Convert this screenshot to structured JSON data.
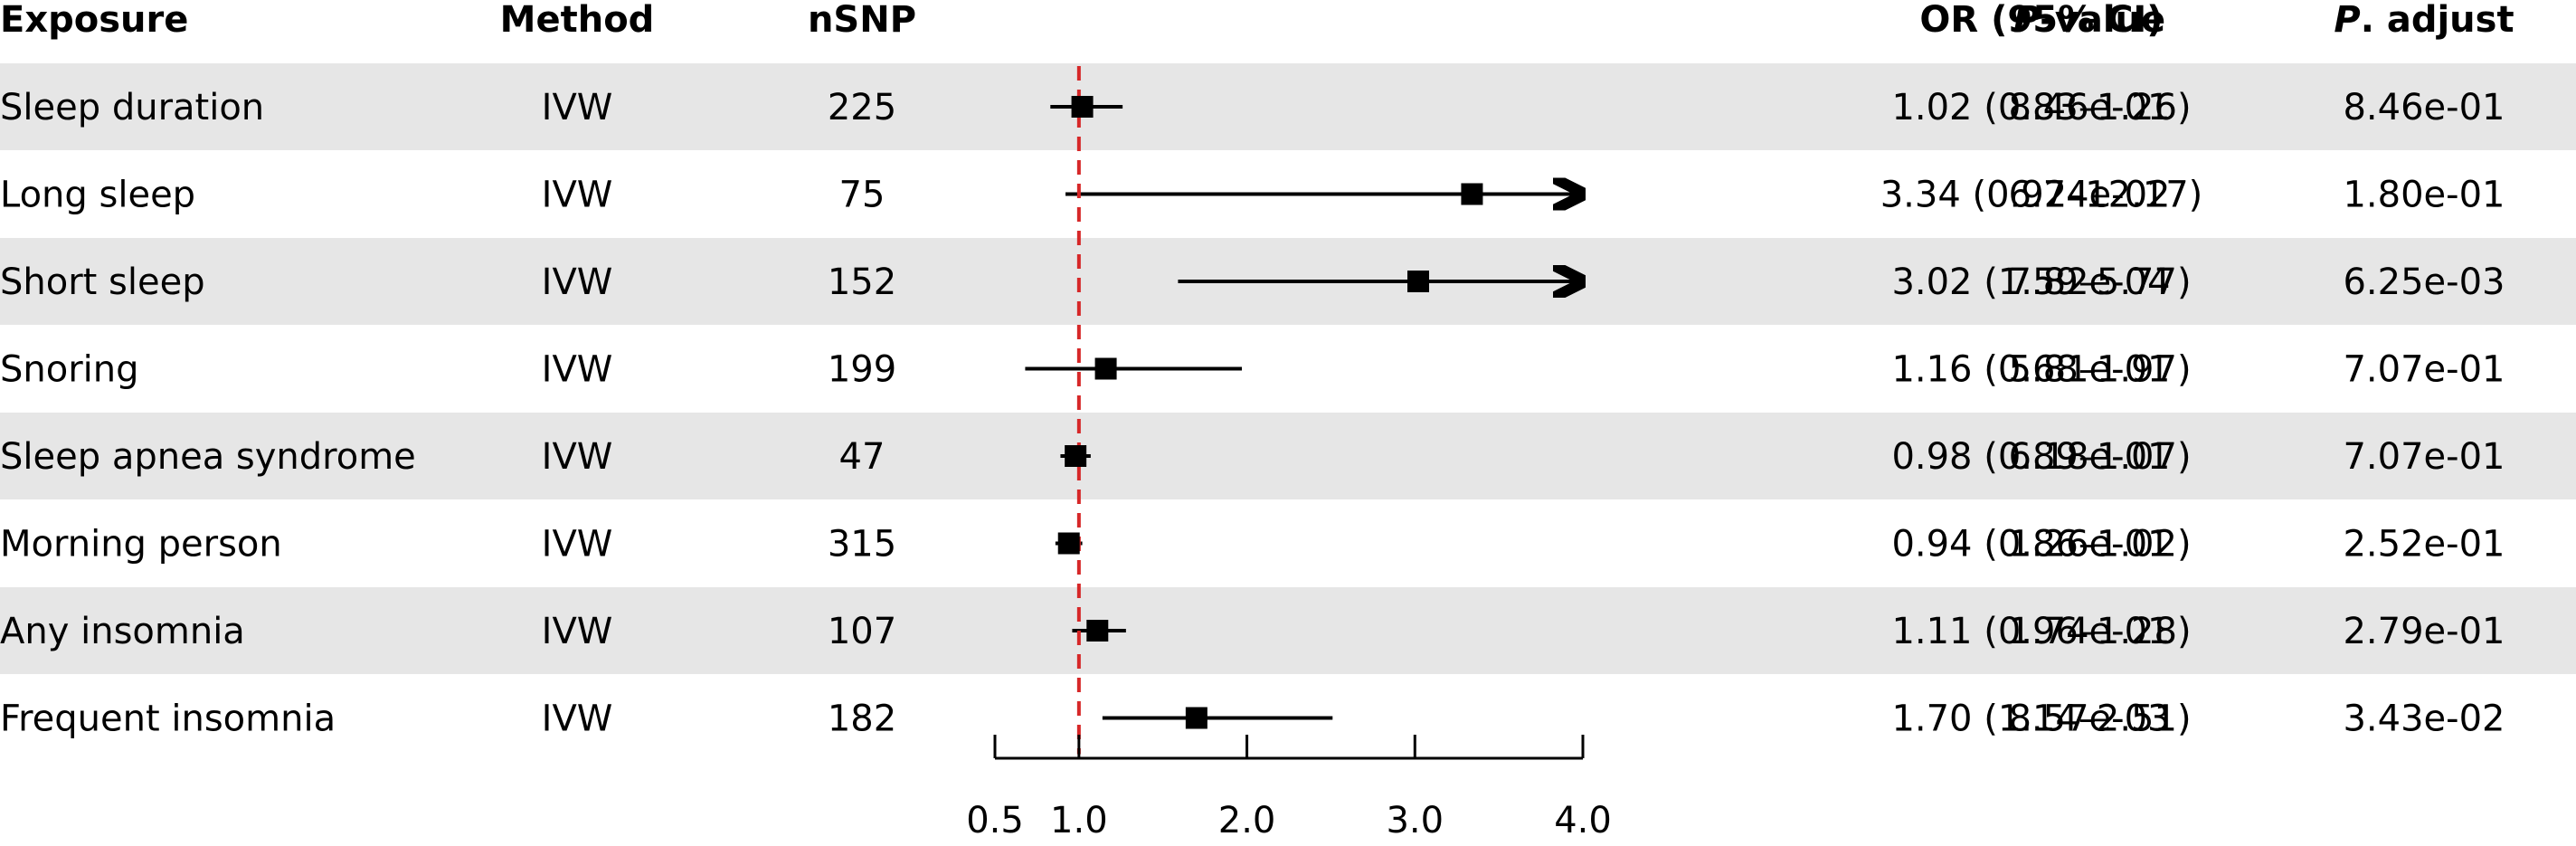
{
  "headers": {
    "exposure": "Exposure",
    "method": "Method",
    "nsnp": "nSNP",
    "or": "OR (95% CI)",
    "pvalue_italic": "P",
    "pvalue_rest": "-value",
    "padjust_italic": "P",
    "padjust_rest": ". adjust"
  },
  "colors": {
    "row_shade": "#e6e6e6",
    "reference_line": "#d62728",
    "marker": "#000000"
  },
  "chart_data": {
    "type": "forest",
    "reference_value": 1.0,
    "xlim": [
      0.5,
      4.0
    ],
    "xticks": [
      0.5,
      1.0,
      2.0,
      3.0,
      4.0
    ],
    "xtick_labels": [
      "0.5",
      "1.0",
      "2.0",
      "3.0",
      "4.0"
    ],
    "rows": [
      {
        "exposure": "Sleep duration",
        "method": "IVW",
        "nsnp": "225",
        "or": 1.02,
        "lower": 0.83,
        "upper": 1.26,
        "or_text": "1.02 (0.83–1.26)",
        "pvalue": "8.46e-01",
        "padjust": "8.46e-01"
      },
      {
        "exposure": "Long sleep",
        "method": "IVW",
        "nsnp": "75",
        "or": 3.34,
        "lower": 0.92,
        "upper": 12.17,
        "or_text": "3.34 (0.92–12.17)",
        "pvalue": "6.74e-02",
        "padjust": "1.80e-01"
      },
      {
        "exposure": "Short sleep",
        "method": "IVW",
        "nsnp": "152",
        "or": 3.02,
        "lower": 1.59,
        "upper": 5.77,
        "or_text": "3.02 (1.59–5.77)",
        "pvalue": "7.82e-04",
        "padjust": "6.25e-03"
      },
      {
        "exposure": "Snoring",
        "method": "IVW",
        "nsnp": "199",
        "or": 1.16,
        "lower": 0.68,
        "upper": 1.97,
        "or_text": "1.16 (0.68–1.97)",
        "pvalue": "5.81e-01",
        "padjust": "7.07e-01"
      },
      {
        "exposure": "Sleep apnea syndrome",
        "method": "IVW",
        "nsnp": "47",
        "or": 0.98,
        "lower": 0.89,
        "upper": 1.07,
        "or_text": "0.98 (0.89–1.07)",
        "pvalue": "6.18e-01",
        "padjust": "7.07e-01"
      },
      {
        "exposure": "Morning person",
        "method": "IVW",
        "nsnp": "315",
        "or": 0.94,
        "lower": 0.86,
        "upper": 1.02,
        "or_text": "0.94 (0.86–1.02)",
        "pvalue": "1.26e-01",
        "padjust": "2.52e-01"
      },
      {
        "exposure": "Any insomnia",
        "method": "IVW",
        "nsnp": "107",
        "or": 1.11,
        "lower": 0.96,
        "upper": 1.28,
        "or_text": "1.11 (0.96–1.28)",
        "pvalue": "1.74e-01",
        "padjust": "2.79e-01"
      },
      {
        "exposure": "Frequent insomnia",
        "method": "IVW",
        "nsnp": "182",
        "or": 1.7,
        "lower": 1.14,
        "upper": 2.51,
        "or_text": "1.70 (1.14–2.51)",
        "pvalue": "8.57e-03",
        "padjust": "3.43e-02"
      }
    ]
  }
}
